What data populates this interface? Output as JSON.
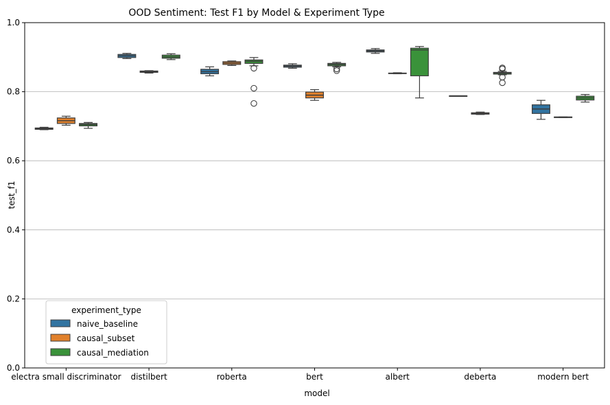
{
  "chart_data": {
    "type": "box",
    "title": "OOD Sentiment: Test F1 by Model & Experiment Type",
    "xlabel": "model",
    "ylabel": "test_f1",
    "ylim": [
      0,
      1
    ],
    "yticks": [
      "0.0",
      "0.2",
      "0.4",
      "0.6",
      "0.8",
      "1.0"
    ],
    "grid": "horizontal",
    "legend": {
      "title": "experiment_type",
      "placement": "lower-left"
    },
    "categories": [
      "electra small discriminator",
      "distilbert",
      "roberta",
      "bert",
      "albert",
      "deberta",
      "modern bert"
    ],
    "series": [
      {
        "name": "naive_baseline",
        "color": "#3274a1",
        "boxes": [
          {
            "whislo": 0.69,
            "q1": 0.691,
            "med": 0.693,
            "q3": 0.695,
            "whishi": 0.697,
            "fliers": []
          },
          {
            "whislo": 0.896,
            "q1": 0.899,
            "med": 0.904,
            "q3": 0.908,
            "whishi": 0.911,
            "fliers": []
          },
          {
            "whislo": 0.846,
            "q1": 0.852,
            "med": 0.858,
            "q3": 0.865,
            "whishi": 0.872,
            "fliers": []
          },
          {
            "whislo": 0.868,
            "q1": 0.871,
            "med": 0.874,
            "q3": 0.877,
            "whishi": 0.881,
            "fliers": []
          },
          {
            "whislo": 0.911,
            "q1": 0.915,
            "med": 0.918,
            "q3": 0.921,
            "whishi": 0.925,
            "fliers": []
          },
          {
            "whislo": 0.788,
            "q1": 0.788,
            "med": 0.788,
            "q3": 0.788,
            "whishi": 0.788,
            "fliers": []
          },
          {
            "whislo": 0.72,
            "q1": 0.737,
            "med": 0.75,
            "q3": 0.762,
            "whishi": 0.775,
            "fliers": []
          }
        ]
      },
      {
        "name": "causal_subset",
        "color": "#e1812c",
        "boxes": [
          {
            "whislo": 0.703,
            "q1": 0.708,
            "med": 0.716,
            "q3": 0.724,
            "whishi": 0.729,
            "fliers": []
          },
          {
            "whislo": 0.854,
            "q1": 0.856,
            "med": 0.858,
            "q3": 0.86,
            "whishi": 0.861,
            "fliers": []
          },
          {
            "whislo": 0.876,
            "q1": 0.879,
            "med": 0.883,
            "q3": 0.887,
            "whishi": 0.889,
            "fliers": []
          },
          {
            "whislo": 0.775,
            "q1": 0.782,
            "med": 0.79,
            "q3": 0.799,
            "whishi": 0.806,
            "fliers": []
          },
          {
            "whislo": 0.852,
            "q1": 0.853,
            "med": 0.853,
            "q3": 0.854,
            "whishi": 0.855,
            "fliers": []
          },
          {
            "whislo": 0.734,
            "q1": 0.735,
            "med": 0.737,
            "q3": 0.739,
            "whishi": 0.741,
            "fliers": []
          },
          {
            "whislo": 0.725,
            "q1": 0.725,
            "med": 0.726,
            "q3": 0.727,
            "whishi": 0.727,
            "fliers": []
          }
        ]
      },
      {
        "name": "causal_mediation",
        "color": "#3a923a",
        "boxes": [
          {
            "whislo": 0.694,
            "q1": 0.701,
            "med": 0.705,
            "q3": 0.708,
            "whishi": 0.711,
            "fliers": []
          },
          {
            "whislo": 0.893,
            "q1": 0.897,
            "med": 0.901,
            "q3": 0.906,
            "whishi": 0.91,
            "fliers": []
          },
          {
            "whislo": 0.875,
            "q1": 0.882,
            "med": 0.888,
            "q3": 0.892,
            "whishi": 0.899,
            "fliers": [
              0.868,
              0.81,
              0.766
            ]
          },
          {
            "whislo": 0.872,
            "q1": 0.875,
            "med": 0.879,
            "q3": 0.882,
            "whishi": 0.885,
            "fliers": [
              0.866,
              0.861
            ]
          },
          {
            "whislo": 0.782,
            "q1": 0.846,
            "med": 0.921,
            "q3": 0.926,
            "whishi": 0.931,
            "fliers": []
          },
          {
            "whislo": 0.849,
            "q1": 0.851,
            "med": 0.854,
            "q3": 0.856,
            "whishi": 0.859,
            "fliers": [
              0.869,
              0.866,
              0.842,
              0.826
            ]
          },
          {
            "whislo": 0.77,
            "q1": 0.776,
            "med": 0.782,
            "q3": 0.787,
            "whishi": 0.792,
            "fliers": []
          }
        ]
      }
    ]
  }
}
